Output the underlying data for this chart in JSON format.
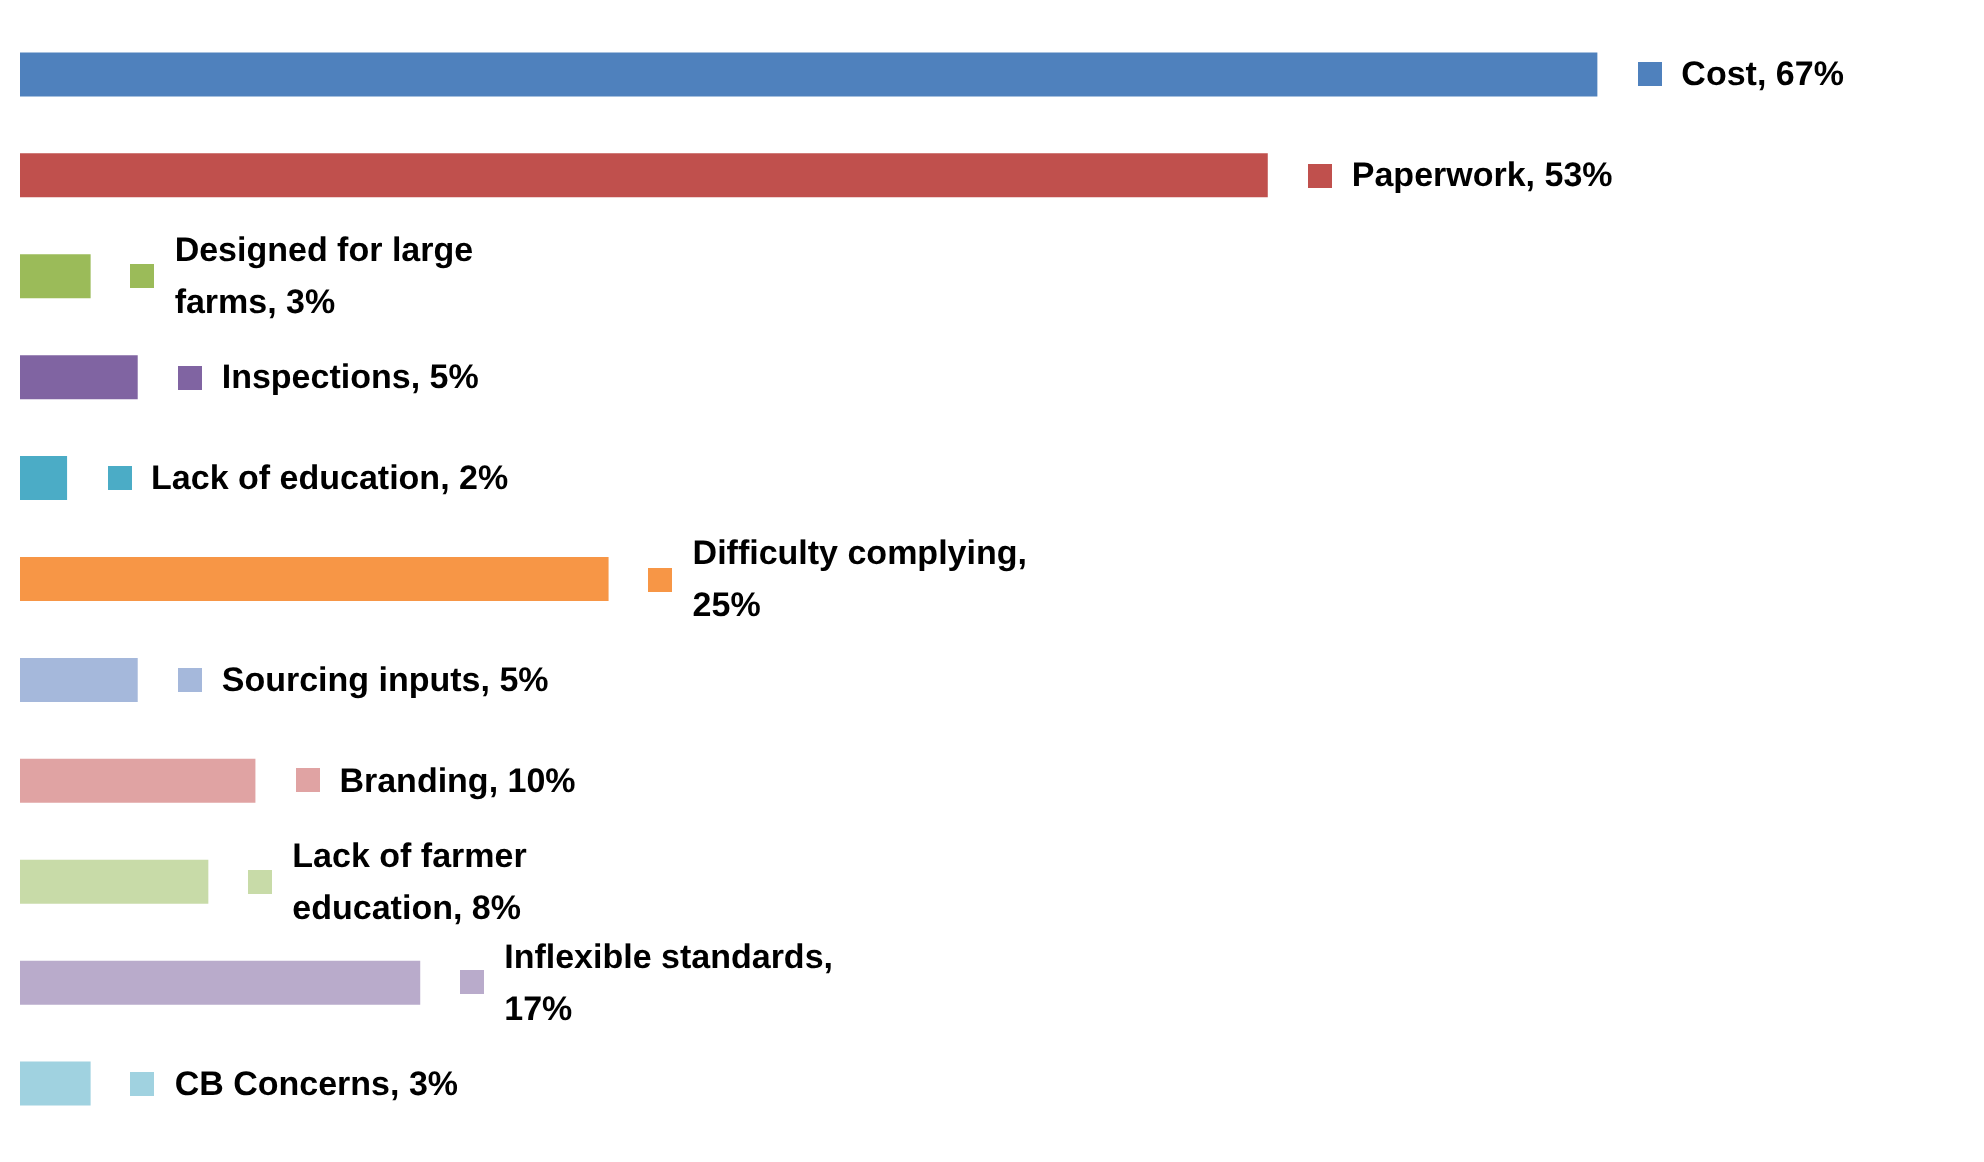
{
  "chart_data": {
    "type": "bar",
    "orientation": "horizontal",
    "categories": [
      null,
      null,
      null,
      null,
      null,
      null,
      null,
      null,
      null,
      null,
      null
    ],
    "values": [
      67,
      53,
      3,
      5,
      2,
      25,
      5,
      10,
      8,
      17,
      3
    ],
    "value_labels": [
      "Cost, 67%",
      "Paperwork, 53%",
      "Designed for large farms, 3%",
      "Inspections, 5%",
      "Lack of education, 2%",
      "Difficulty complying, 25%",
      "Sourcing inputs, 5%",
      "Branding, 10%",
      "Lack of farmer education, 8%",
      "Inflexible standards, 17%",
      "CB Concerns, 3%"
    ],
    "colors": [
      "#4f81bd",
      "#c0504d",
      "#9bbb59",
      "#8064a2",
      "#4bacc6",
      "#f79646",
      "#a5b8db",
      "#e0a3a3",
      "#c8dba8",
      "#b9abcb",
      "#a0d2e0"
    ],
    "grid": false
  }
}
